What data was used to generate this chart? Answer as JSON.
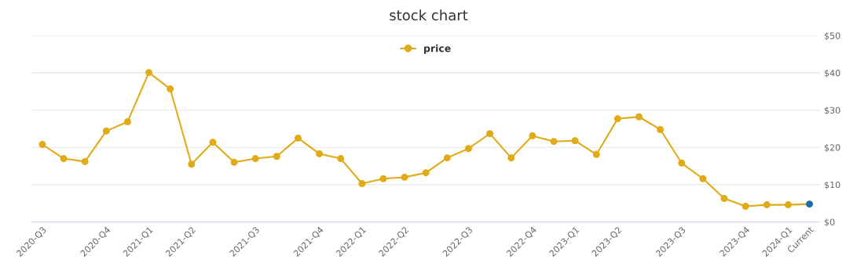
{
  "chart_data": {
    "type": "line",
    "title": "stock chart",
    "categories": [
      "2020-Q3",
      null,
      null,
      "2020-Q4",
      null,
      "2021-Q1",
      null,
      "2021-Q2",
      null,
      null,
      "2021-Q3",
      null,
      null,
      "2021-Q4",
      null,
      "2022-Q1",
      null,
      "2022-Q2",
      null,
      null,
      "2022-Q3",
      null,
      null,
      "2022-Q4",
      null,
      "2023-Q1",
      null,
      "2023-Q2",
      null,
      null,
      "2023-Q3",
      null,
      null,
      "2023-Q4",
      null,
      "2024-Q1",
      "Current"
    ],
    "series": [
      {
        "name": "price",
        "color": "#e0ab16",
        "colors": [
          "#e0ab16",
          "#e0ab16",
          "#e0ab16",
          "#e0ab16",
          "#e0ab16",
          "#e0ab16",
          "#e0ab16",
          "#e0ab16",
          "#e0ab16",
          "#e0ab16",
          "#e0ab16",
          "#e0ab16",
          "#e0ab16",
          "#e0ab16",
          "#e0ab16",
          "#e0ab16",
          "#e0ab16",
          "#e0ab16",
          "#e0ab16",
          "#e0ab16",
          "#e0ab16",
          "#e0ab16",
          "#e0ab16",
          "#e0ab16",
          "#e0ab16",
          "#e0ab16",
          "#e0ab16",
          "#e0ab16",
          "#e0ab16",
          "#e0ab16",
          "#e0ab16",
          "#e0ab16",
          "#e0ab16",
          "#e0ab16",
          "#e0ab16",
          "#e0ab16",
          "#1f6fa3"
        ],
        "values": [
          20.8,
          17.0,
          16.2,
          24.4,
          26.9,
          40.1,
          35.7,
          15.5,
          21.4,
          16.0,
          17.0,
          17.6,
          22.5,
          18.3,
          17.0,
          10.3,
          11.6,
          12.0,
          13.2,
          17.2,
          19.7,
          23.7,
          17.2,
          23.1,
          21.6,
          21.8,
          18.1,
          27.7,
          28.2,
          24.8,
          15.8,
          11.6,
          6.3,
          4.2,
          4.6,
          4.6,
          4.8
        ]
      }
    ],
    "ylim": [
      0,
      50
    ],
    "yticks": [
      {
        "value": 0,
        "label": "$0"
      },
      {
        "value": 10,
        "label": "$10"
      },
      {
        "value": 20,
        "label": "$20"
      },
      {
        "value": 30,
        "label": "$30"
      },
      {
        "value": 40,
        "label": "$40"
      },
      {
        "value": 50,
        "label": "$50"
      }
    ],
    "grid": "y",
    "legend": "top",
    "marker": "circle",
    "line_style": "solid"
  }
}
